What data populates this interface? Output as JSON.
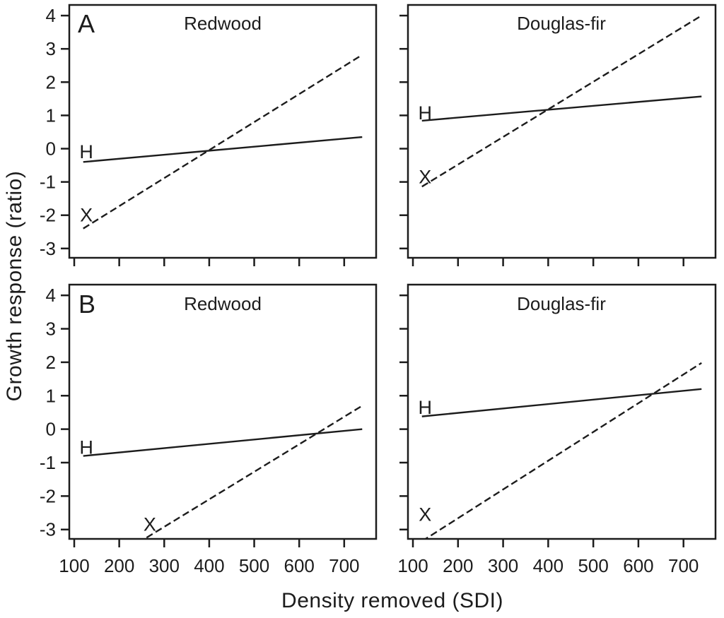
{
  "figure": {
    "background": "#ffffff",
    "ink_color": "#1c1c1c"
  },
  "axes": {
    "x_label": "Density removed (SDI)",
    "y_label": "Growth response (ratio)",
    "x_tick_labels": [
      "100",
      "200",
      "300",
      "400",
      "500",
      "600",
      "700"
    ],
    "y_tick_labels": [
      "4",
      "3",
      "2",
      "1",
      "0",
      "-1",
      "-2",
      "-3"
    ]
  },
  "chart_data": [
    {
      "type": "line",
      "panel_letter": "A",
      "title": "Redwood",
      "xlabel": "Density removed (SDI)",
      "ylabel": "Growth response (ratio)",
      "xlim": [
        89,
        771
      ],
      "ylim": [
        -3.28,
        4.32
      ],
      "x_ticks": [
        100,
        200,
        300,
        400,
        500,
        600,
        700
      ],
      "y_ticks": [
        4,
        3,
        2,
        1,
        0,
        -1,
        -2,
        -3
      ],
      "grid": false,
      "legend": "inline-labels",
      "series": [
        {
          "name": "H",
          "line_style": "solid",
          "x": [
            120,
            740
          ],
          "y": [
            -0.4,
            0.35
          ],
          "label_pos": [
            127,
            -0.1
          ]
        },
        {
          "name": "X",
          "line_style": "dashed",
          "x": [
            120,
            740
          ],
          "y": [
            -2.4,
            2.82
          ],
          "label_pos": [
            127,
            -2.0
          ]
        }
      ]
    },
    {
      "type": "line",
      "panel_letter": "",
      "title": "Douglas-fir",
      "xlabel": "Density removed (SDI)",
      "ylabel": "Growth response (ratio)",
      "xlim": [
        89,
        771
      ],
      "ylim": [
        -3.28,
        4.32
      ],
      "x_ticks": [
        100,
        200,
        300,
        400,
        500,
        600,
        700
      ],
      "y_ticks": [
        4,
        3,
        2,
        1,
        0,
        -1,
        -2,
        -3
      ],
      "grid": false,
      "legend": "inline-labels",
      "series": [
        {
          "name": "H",
          "line_style": "solid",
          "x": [
            120,
            740
          ],
          "y": [
            0.84,
            1.57
          ],
          "label_pos": [
            127,
            1.07
          ]
        },
        {
          "name": "X",
          "line_style": "dashed",
          "x": [
            120,
            740
          ],
          "y": [
            -1.14,
            4.0
          ],
          "label_pos": [
            127,
            -0.85
          ]
        }
      ]
    },
    {
      "type": "line",
      "panel_letter": "B",
      "title": "Redwood",
      "xlabel": "Density removed (SDI)",
      "ylabel": "Growth response (ratio)",
      "xlim": [
        89,
        771
      ],
      "ylim": [
        -3.28,
        4.32
      ],
      "x_ticks": [
        100,
        200,
        300,
        400,
        500,
        600,
        700
      ],
      "y_ticks": [
        4,
        3,
        2,
        1,
        0,
        -1,
        -2,
        -3
      ],
      "grid": false,
      "legend": "inline-labels",
      "series": [
        {
          "name": "H",
          "line_style": "solid",
          "x": [
            120,
            740
          ],
          "y": [
            -0.8,
            0.0
          ],
          "label_pos": [
            127,
            -0.55
          ]
        },
        {
          "name": "X",
          "line_style": "dashed",
          "x": [
            120,
            740
          ],
          "y": [
            -4.4,
            0.7
          ],
          "label_pos": [
            268,
            -2.85
          ]
        }
      ]
    },
    {
      "type": "line",
      "panel_letter": "",
      "title": "Douglas-fir",
      "xlabel": "Density removed (SDI)",
      "ylabel": "Growth response (ratio)",
      "xlim": [
        89,
        771
      ],
      "ylim": [
        -3.28,
        4.32
      ],
      "x_ticks": [
        100,
        200,
        300,
        400,
        500,
        600,
        700
      ],
      "y_ticks": [
        4,
        3,
        2,
        1,
        0,
        -1,
        -2,
        -3
      ],
      "grid": false,
      "legend": "inline-labels",
      "series": [
        {
          "name": "H",
          "line_style": "solid",
          "x": [
            120,
            740
          ],
          "y": [
            0.38,
            1.2
          ],
          "label_pos": [
            127,
            0.65
          ]
        },
        {
          "name": "X",
          "line_style": "dashed",
          "x": [
            120,
            740
          ],
          "y": [
            -3.35,
            1.98
          ],
          "label_pos": [
            127,
            -2.55
          ]
        }
      ]
    }
  ]
}
